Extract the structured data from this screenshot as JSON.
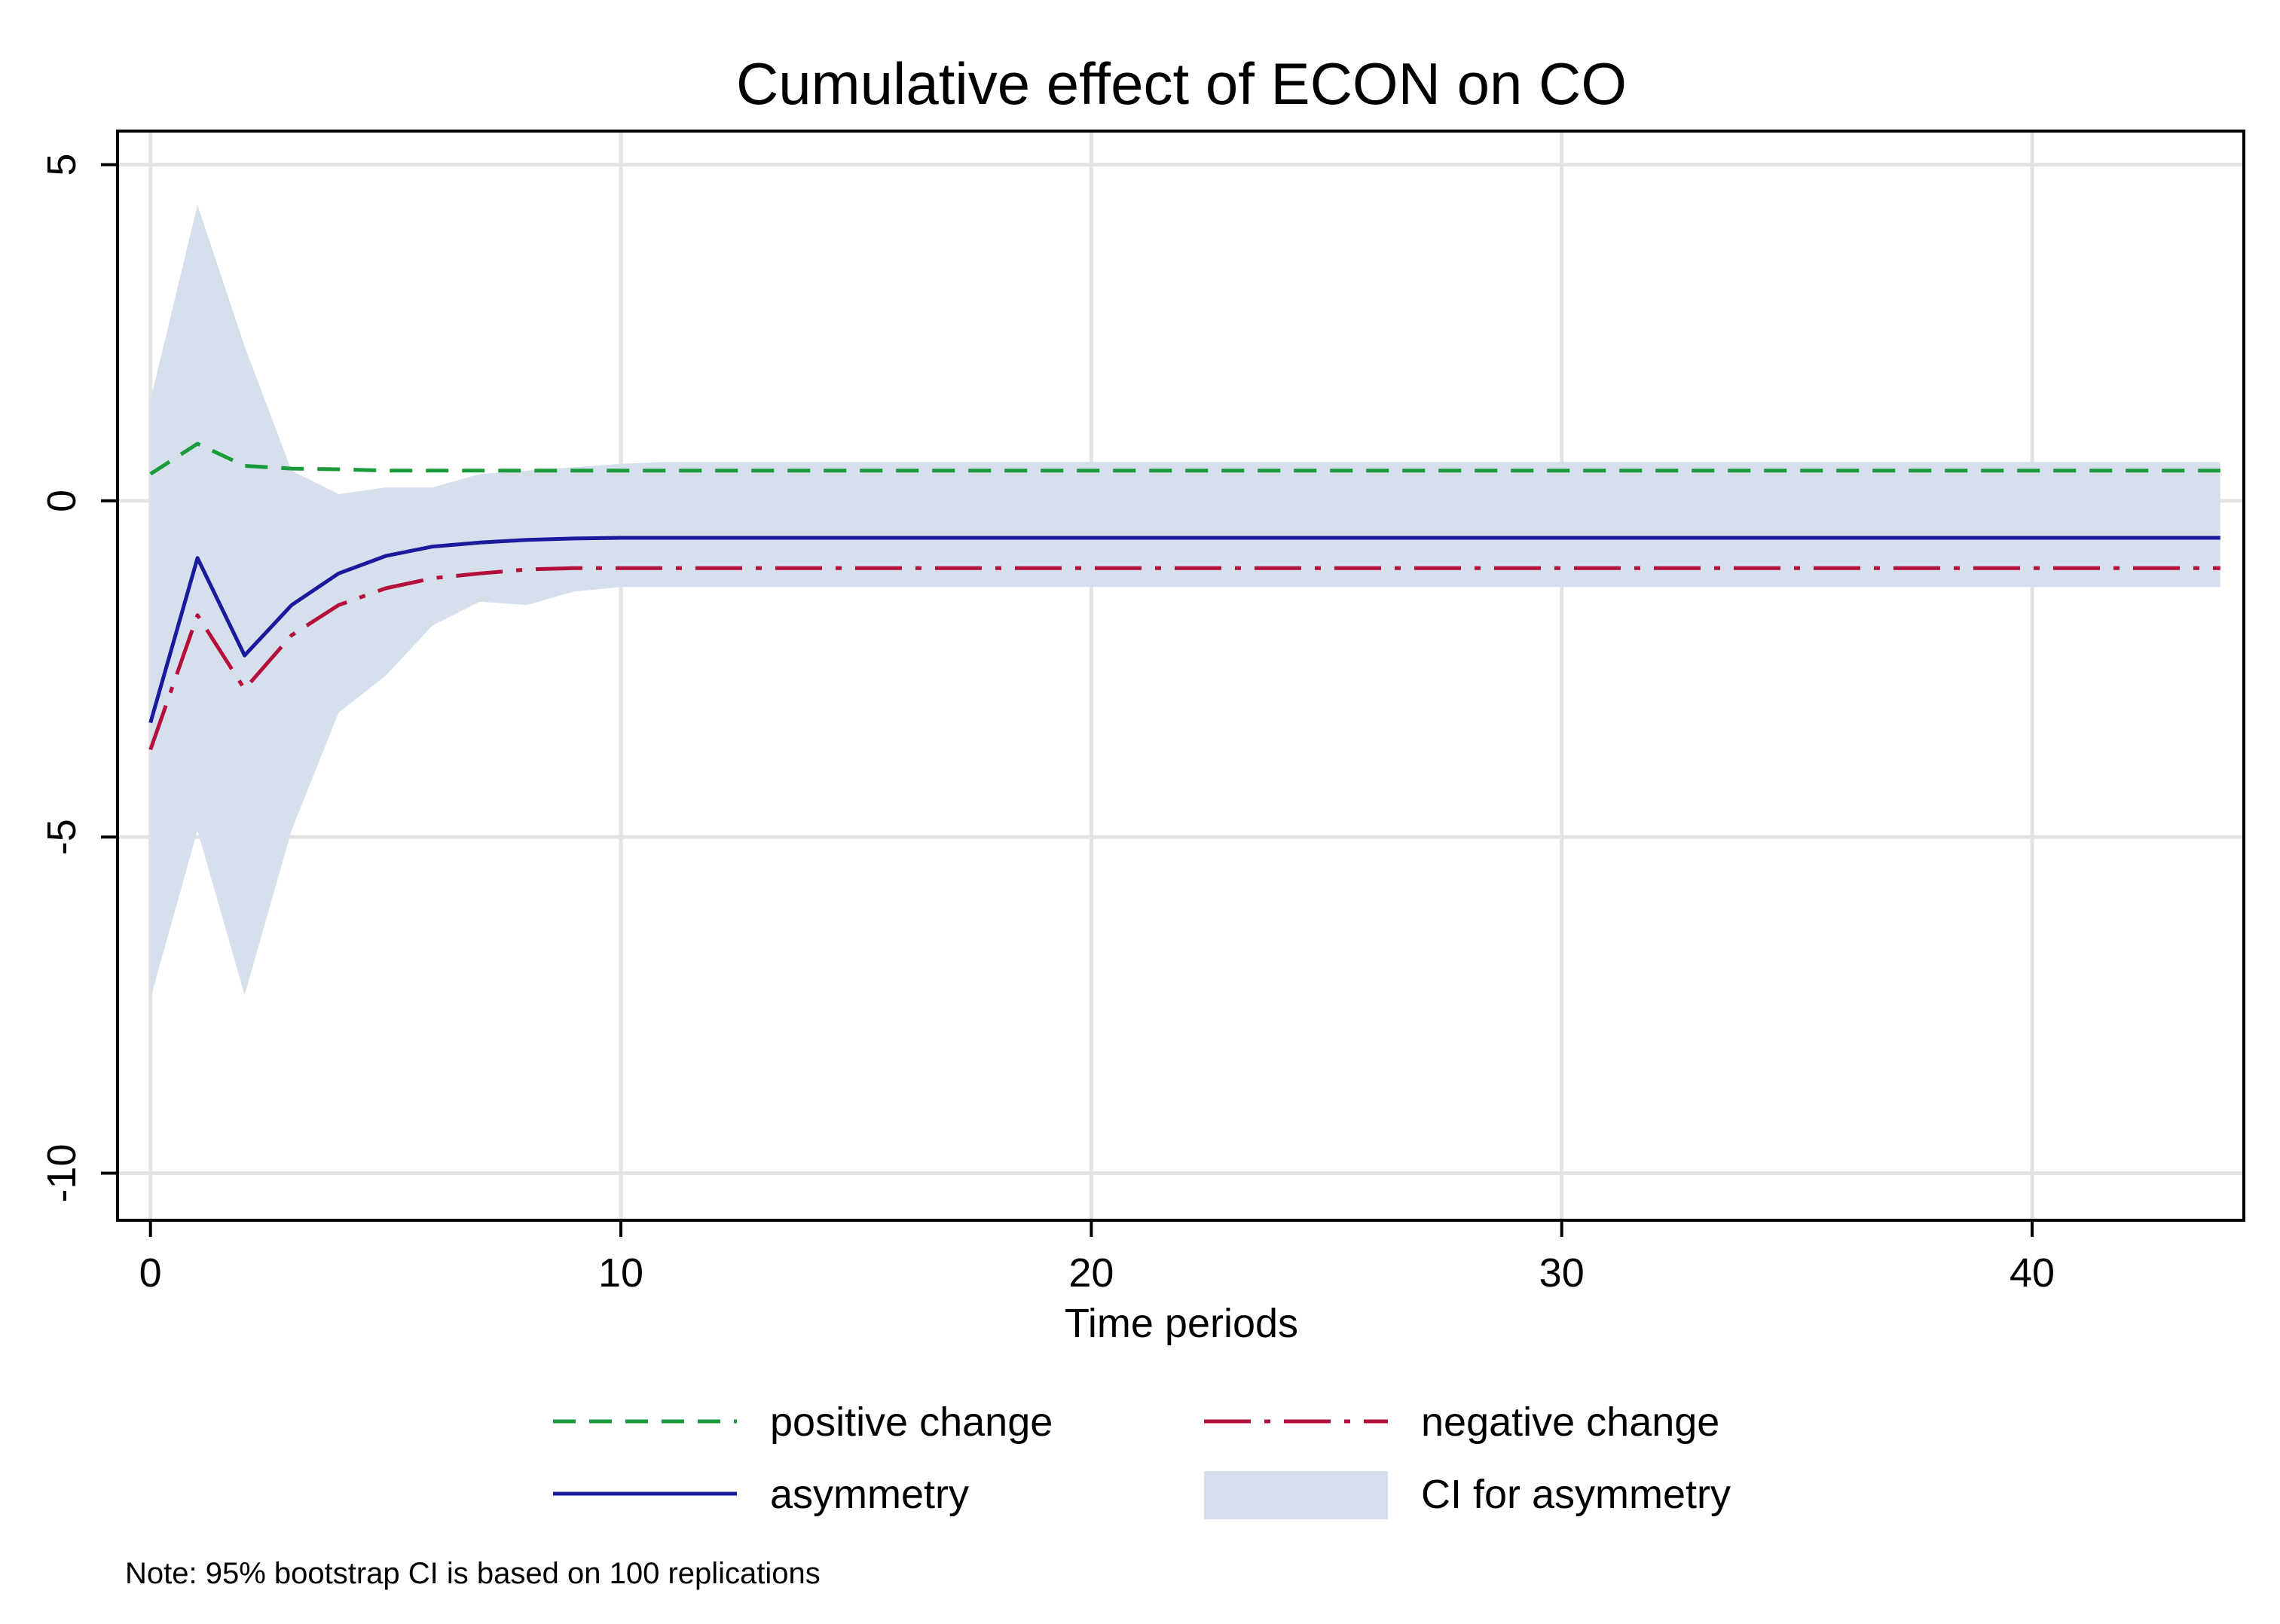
{
  "chart_data": {
    "type": "line",
    "title": "Cumulative effect of ECON on CO",
    "xlabel": "Time periods",
    "ylabel": "",
    "xlim": [
      -0.7,
      44.5
    ],
    "ylim": [
      -10.7,
      5.5
    ],
    "xticks": [
      0,
      10,
      20,
      30,
      40
    ],
    "xtick_labels": [
      "0",
      "10",
      "20",
      "30",
      "40"
    ],
    "yticks": [
      5,
      0,
      -5,
      -10
    ],
    "ytick_labels": [
      "5",
      "0",
      "-5",
      "-10"
    ],
    "grid": true,
    "legend_position": "bottom",
    "x": [
      0,
      1,
      2,
      3,
      4,
      5,
      6,
      7,
      8,
      9,
      10,
      11,
      12,
      13,
      14,
      15,
      16,
      17,
      18,
      19,
      20,
      21,
      22,
      23,
      24,
      25,
      26,
      27,
      28,
      29,
      30,
      31,
      32,
      33,
      34,
      35,
      36,
      37,
      38,
      39,
      40,
      41,
      42,
      43,
      44
    ],
    "series": [
      {
        "name": "positive change",
        "color": "#1a9a3a",
        "style": "dashed",
        "values": [
          0.4,
          0.85,
          0.52,
          0.48,
          0.47,
          0.45,
          0.45,
          0.45,
          0.45,
          0.45,
          0.45,
          0.45,
          0.45,
          0.45,
          0.45,
          0.45,
          0.45,
          0.45,
          0.45,
          0.45,
          0.45,
          0.45,
          0.45,
          0.45,
          0.45,
          0.45,
          0.45,
          0.45,
          0.45,
          0.45,
          0.45,
          0.45,
          0.45,
          0.45,
          0.45,
          0.45,
          0.45,
          0.45,
          0.45,
          0.45,
          0.45,
          0.45,
          0.45,
          0.45,
          0.45
        ]
      },
      {
        "name": "negative change",
        "color": "#b5103c",
        "style": "longdash-dot",
        "values": [
          -3.7,
          -1.7,
          -2.8,
          -2.0,
          -1.55,
          -1.3,
          -1.15,
          -1.08,
          -1.02,
          -1.0,
          -1.0,
          -1.0,
          -1.0,
          -1.0,
          -1.0,
          -1.0,
          -1.0,
          -1.0,
          -1.0,
          -1.0,
          -1.0,
          -1.0,
          -1.0,
          -1.0,
          -1.0,
          -1.0,
          -1.0,
          -1.0,
          -1.0,
          -1.0,
          -1.0,
          -1.0,
          -1.0,
          -1.0,
          -1.0,
          -1.0,
          -1.0,
          -1.0,
          -1.0,
          -1.0,
          -1.0,
          -1.0,
          -1.0,
          -1.0,
          -1.0
        ]
      },
      {
        "name": "asymmetry",
        "color": "#1a1a9c",
        "style": "solid",
        "values": [
          -3.3,
          -0.85,
          -2.3,
          -1.55,
          -1.08,
          -0.82,
          -0.68,
          -0.62,
          -0.58,
          -0.56,
          -0.55,
          -0.55,
          -0.55,
          -0.55,
          -0.55,
          -0.55,
          -0.55,
          -0.55,
          -0.55,
          -0.55,
          -0.55,
          -0.55,
          -0.55,
          -0.55,
          -0.55,
          -0.55,
          -0.55,
          -0.55,
          -0.55,
          -0.55,
          -0.55,
          -0.55,
          -0.55,
          -0.55,
          -0.55,
          -0.55,
          -0.55,
          -0.55,
          -0.55,
          -0.55,
          -0.55,
          -0.55,
          -0.55,
          -0.55,
          -0.55
        ]
      }
    ],
    "ci": {
      "name": "CI for asymmetry",
      "color": "#d5e0ec",
      "upper": [
        1.5,
        4.4,
        2.3,
        0.45,
        0.1,
        0.2,
        0.2,
        0.4,
        0.45,
        0.5,
        0.55,
        0.58,
        0.58,
        0.58,
        0.58,
        0.58,
        0.58,
        0.58,
        0.58,
        0.58,
        0.58,
        0.58,
        0.58,
        0.58,
        0.58,
        0.58,
        0.58,
        0.58,
        0.58,
        0.58,
        0.58,
        0.58,
        0.58,
        0.58,
        0.58,
        0.58,
        0.58,
        0.58,
        0.58,
        0.58,
        0.58,
        0.58,
        0.58,
        0.58,
        0.58
      ],
      "lower": [
        -7.4,
        -4.9,
        -7.35,
        -4.9,
        -3.15,
        -2.6,
        -1.85,
        -1.5,
        -1.55,
        -1.35,
        -1.28,
        -1.28,
        -1.28,
        -1.28,
        -1.28,
        -1.28,
        -1.28,
        -1.28,
        -1.28,
        -1.28,
        -1.28,
        -1.28,
        -1.28,
        -1.28,
        -1.28,
        -1.28,
        -1.28,
        -1.28,
        -1.28,
        -1.28,
        -1.28,
        -1.28,
        -1.28,
        -1.28,
        -1.28,
        -1.28,
        -1.28,
        -1.28,
        -1.28,
        -1.28,
        -1.28,
        -1.28,
        -1.28,
        -1.28,
        -1.28
      ]
    },
    "legend": {
      "positive": "positive change",
      "negative": "negative change",
      "asymmetry": "asymmetry",
      "ci": "CI for asymmetry"
    },
    "note": "Note: 95% bootstrap CI is based on 100 replications"
  }
}
